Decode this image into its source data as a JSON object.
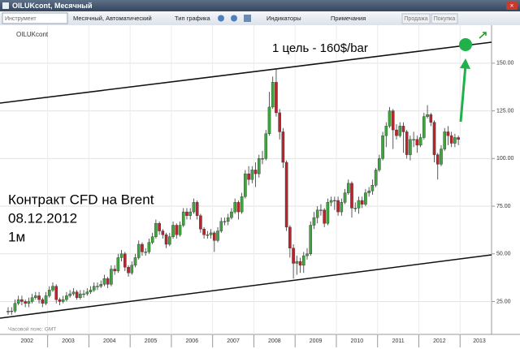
{
  "window": {
    "title": "OILUKcont, Месячный"
  },
  "toolbar": {
    "instrument": "Инструмент",
    "period": "Месячный, Автоматический",
    "chart_type": "Тип графика",
    "indicators": "Индикаторы",
    "notes": "Примечания",
    "sell": "Продажа",
    "buy": "Покупка"
  },
  "chart_data": {
    "type": "candlestick",
    "symbol": "OILUKcont",
    "annotations": [
      "1 цель - 160$/bar",
      "Контракт CFD на Brent",
      "08.12.2012",
      "1м"
    ],
    "timezone": "Часовой пояс: GMT",
    "x_labels": [
      "2002",
      "2003",
      "2004",
      "2005",
      "2006",
      "2007",
      "2008",
      "2009",
      "2010",
      "2011",
      "2012",
      "2013"
    ],
    "ylim": [
      12,
      164
    ],
    "yticks": [
      {
        "value": 25,
        "label": "25.00"
      },
      {
        "value": 50,
        "label": "50.00"
      },
      {
        "value": 75,
        "label": "75.00"
      },
      {
        "value": 100,
        "label": "100.00"
      },
      {
        "value": 125,
        "label": "125.00"
      },
      {
        "value": 150,
        "label": "150.00"
      }
    ],
    "grid": true,
    "up_color": "#3fa63f",
    "down_color": "#c0222c",
    "open": [
      19.5,
      20,
      20,
      24,
      26,
      25,
      24,
      25,
      27,
      28,
      26,
      24,
      28,
      31,
      33,
      26,
      25,
      26,
      28,
      29,
      30,
      27,
      29,
      29,
      30,
      31,
      33,
      33,
      34,
      37,
      34,
      42,
      41,
      48,
      50,
      43,
      40,
      44,
      48,
      55,
      51,
      51,
      56,
      59,
      66,
      62,
      60,
      55,
      59,
      65,
      60,
      65,
      72,
      70,
      72,
      77,
      70,
      63,
      60,
      60,
      61,
      57,
      62,
      67,
      67,
      69,
      72,
      77,
      72,
      80,
      92,
      89,
      94,
      92,
      100,
      100,
      113,
      127,
      140,
      124,
      114,
      98,
      64,
      53,
      45,
      46,
      44,
      49,
      50,
      65,
      69,
      73,
      73,
      66,
      77,
      78,
      78,
      72,
      77,
      82,
      87,
      74,
      74,
      78,
      76,
      82,
      83,
      86,
      94,
      100,
      112,
      117,
      125,
      115,
      112,
      117,
      114,
      102,
      110,
      110,
      107,
      111,
      122,
      123,
      119,
      102,
      97,
      105,
      114,
      112,
      108,
      111
    ],
    "high": [
      22,
      22,
      26,
      28,
      28,
      26,
      27,
      29,
      30,
      30,
      27,
      30,
      33,
      35,
      34,
      27,
      28,
      30,
      31,
      32,
      31,
      31,
      31,
      32,
      33,
      35,
      35,
      36,
      39,
      38,
      44,
      44,
      50,
      52,
      51,
      44,
      46,
      50,
      57,
      56,
      53,
      58,
      61,
      68,
      67,
      63,
      61,
      61,
      67,
      66,
      67,
      74,
      74,
      74,
      79,
      78,
      71,
      64,
      62,
      63,
      62,
      64,
      69,
      69,
      71,
      74,
      79,
      78,
      82,
      94,
      96,
      96,
      98,
      102,
      104,
      115,
      135,
      143,
      147,
      126,
      116,
      99,
      65,
      55,
      49,
      48,
      51,
      53,
      67,
      72,
      75,
      76,
      74,
      79,
      80,
      80,
      80,
      79,
      84,
      89,
      88,
      77,
      80,
      80,
      84,
      85,
      89,
      95,
      102,
      114,
      119,
      127,
      126,
      118,
      119,
      119,
      115,
      112,
      114,
      112,
      113,
      124,
      128,
      124,
      120,
      103,
      107,
      116,
      117,
      114,
      113,
      112
    ],
    "low": [
      18,
      18,
      19,
      23,
      23,
      22,
      22,
      24,
      26,
      24,
      22,
      23,
      27,
      30,
      24,
      23,
      24,
      25,
      27,
      28,
      26,
      26,
      27,
      28,
      29,
      30,
      31,
      32,
      33,
      32,
      33,
      39,
      40,
      46,
      41,
      38,
      39,
      43,
      47,
      49,
      49,
      50,
      55,
      58,
      60,
      58,
      53,
      54,
      58,
      58,
      59,
      64,
      68,
      68,
      71,
      68,
      61,
      58,
      58,
      58,
      51,
      56,
      61,
      65,
      65,
      68,
      71,
      68,
      71,
      79,
      86,
      87,
      85,
      90,
      97,
      99,
      112,
      126,
      122,
      110,
      95,
      62,
      48,
      37,
      39,
      40,
      40,
      47,
      49,
      63,
      66,
      70,
      64,
      65,
      75,
      73,
      70,
      70,
      76,
      81,
      69,
      72,
      71,
      74,
      75,
      80,
      81,
      85,
      93,
      99,
      106,
      116,
      105,
      110,
      111,
      103,
      100,
      99,
      106,
      103,
      106,
      110,
      121,
      117,
      98,
      89,
      96,
      104,
      107,
      106,
      106,
      107
    ],
    "close": [
      20,
      20,
      24,
      26,
      25,
      24,
      25,
      27,
      28,
      26,
      24,
      28,
      31,
      33,
      26,
      25,
      26,
      28,
      29,
      30,
      27,
      29,
      29,
      30,
      31,
      33,
      33,
      34,
      37,
      34,
      42,
      41,
      48,
      50,
      43,
      40,
      44,
      48,
      55,
      51,
      51,
      56,
      59,
      66,
      62,
      60,
      55,
      59,
      65,
      60,
      65,
      72,
      70,
      72,
      77,
      70,
      63,
      60,
      60,
      61,
      57,
      62,
      67,
      67,
      69,
      72,
      77,
      72,
      80,
      92,
      89,
      94,
      92,
      100,
      100,
      113,
      127,
      140,
      124,
      114,
      98,
      64,
      53,
      45,
      46,
      44,
      49,
      50,
      65,
      69,
      73,
      73,
      66,
      77,
      78,
      78,
      72,
      77,
      82,
      87,
      74,
      74,
      78,
      76,
      82,
      83,
      86,
      94,
      100,
      112,
      117,
      125,
      115,
      112,
      117,
      114,
      102,
      110,
      110,
      107,
      111,
      122,
      123,
      119,
      102,
      97,
      105,
      114,
      112,
      108,
      111,
      110
    ]
  }
}
